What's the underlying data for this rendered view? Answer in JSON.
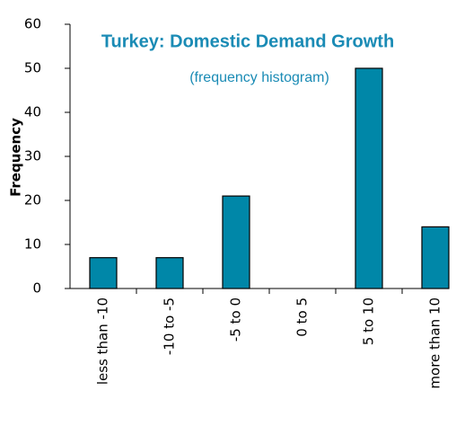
{
  "chart_data": {
    "type": "bar",
    "title": "Turkey: Domestic Demand Growth",
    "subtitle": "(frequency histogram)",
    "ylabel": "Frequency",
    "categories": [
      "less than -10",
      "-10 to -5",
      "-5 to 0",
      "0 to 5",
      "5 to 10",
      "more than 10"
    ],
    "values": [
      7,
      7,
      21,
      0,
      50,
      14
    ],
    "color": "#0087a8",
    "ylim": [
      0,
      60
    ],
    "yticks": [
      0,
      10,
      20,
      30,
      40,
      50,
      60
    ],
    "grid": false
  }
}
